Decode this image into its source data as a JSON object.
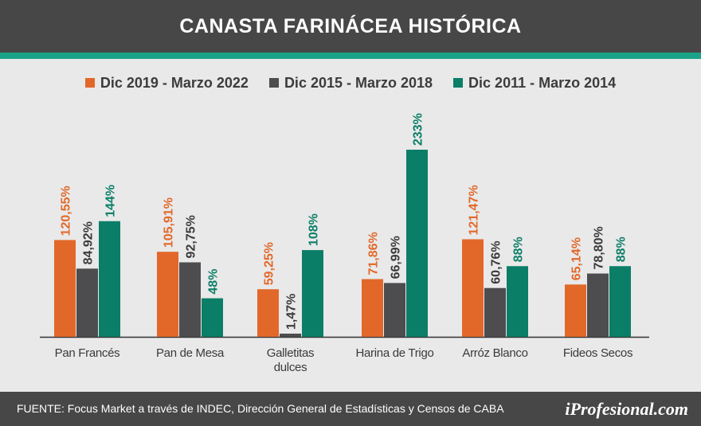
{
  "header": {
    "title": "CANASTA FARINÁCEA HISTÓRICA"
  },
  "colors": {
    "orange": "#e2682a",
    "gray": "#4d4d4f",
    "green": "#0b7e68",
    "header_bg": "#474747",
    "accent": "#1aa386"
  },
  "chart_data": {
    "type": "bar",
    "title": "CANASTA FARINÁCEA HISTÓRICA",
    "xlabel": "",
    "ylabel": "",
    "ylim": [
      0,
      240
    ],
    "grid": false,
    "legend_position": "top",
    "categories": [
      [
        "Pan Francés"
      ],
      [
        "Pan de Mesa"
      ],
      [
        "Galletitas",
        "dulces"
      ],
      [
        "Harina de Trigo"
      ],
      [
        "Arróz Blanco"
      ],
      [
        "Fideos Secos"
      ]
    ],
    "series": [
      {
        "name": "Dic 2019 - Marzo 2022",
        "color": "#e2682a",
        "values": [
          120.55,
          105.91,
          59.25,
          71.86,
          121.47,
          65.14
        ],
        "labels": [
          "120,55%",
          "105,91%",
          "59,25%",
          "71,86%",
          "121,47%",
          "65,14%"
        ]
      },
      {
        "name": "Dic 2015 - Marzo 2018",
        "color": "#4d4d4f",
        "values": [
          84.92,
          92.75,
          1.47,
          66.99,
          60.76,
          78.8
        ],
        "labels": [
          "84,92%",
          "92,75%",
          "1,47%",
          "66,99%",
          "60,76%",
          "78,80%"
        ]
      },
      {
        "name": "Dic 2011 - Marzo 2014",
        "color": "#0b7e68",
        "values": [
          144,
          48,
          108,
          233,
          88,
          88
        ],
        "labels": [
          "144%",
          "48%",
          "108%",
          "233%",
          "88%",
          "88%"
        ]
      }
    ]
  },
  "footer": {
    "source": "FUENTE: Focus Market a través de INDEC, Dirección General de Estadísticas y Censos de CABA",
    "logo": "iProfesional.com"
  }
}
